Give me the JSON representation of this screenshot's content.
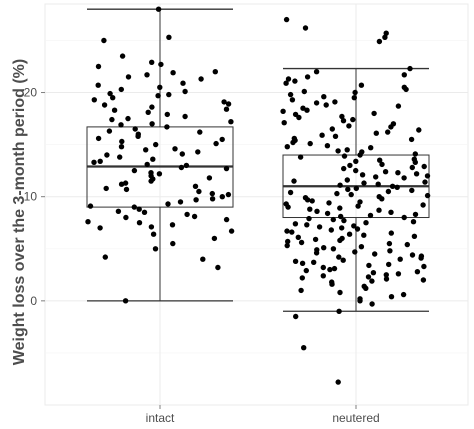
{
  "chart_data": {
    "type": "box-jitter",
    "ylabel": "Weight loss over the 3-month period (%)",
    "xlabel": "",
    "categories": [
      "intact",
      "neutered"
    ],
    "ylim": [
      -10,
      28.5
    ],
    "yticks": [
      0,
      10,
      20
    ],
    "grid": true,
    "legend": "none",
    "colors": {
      "point": "#000000",
      "box": "#333333",
      "grid_major": "#ebebeb",
      "grid_minor": "#f5f5f5",
      "axis": "#7f7f7f"
    },
    "boxes": [
      {
        "category": "intact",
        "whisker_low": 0.0,
        "q1": 9.0,
        "median": 12.9,
        "q3": 16.7,
        "whisker_high": 28.0
      },
      {
        "category": "neutered",
        "whisker_low": -1.0,
        "q1": 8.0,
        "median": 11.0,
        "q3": 14.0,
        "whisker_high": 22.3
      }
    ],
    "points": {
      "intact": [
        28.0,
        25.3,
        25.0,
        23.5,
        22.9,
        22.7,
        22.5,
        22.0,
        21.9,
        21.7,
        21.5,
        21.3,
        20.9,
        20.7,
        20.5,
        20.3,
        20.1,
        19.9,
        19.8,
        19.7,
        19.5,
        19.3,
        19.1,
        18.9,
        18.8,
        18.6,
        18.4,
        18.3,
        18.1,
        17.9,
        17.7,
        17.5,
        17.4,
        17.2,
        17.0,
        16.9,
        16.7,
        16.5,
        16.3,
        16.2,
        16.0,
        15.8,
        15.6,
        15.5,
        15.3,
        15.1,
        15.0,
        14.8,
        14.6,
        14.5,
        14.3,
        14.1,
        14.0,
        13.8,
        13.6,
        13.4,
        13.3,
        13.1,
        13.0,
        12.8,
        12.7,
        12.5,
        12.3,
        12.2,
        12.0,
        11.8,
        11.7,
        11.5,
        11.3,
        11.2,
        11.0,
        10.8,
        10.7,
        10.5,
        10.3,
        10.2,
        10.0,
        9.8,
        9.7,
        9.5,
        9.3,
        9.1,
        9.0,
        8.8,
        8.6,
        8.5,
        8.3,
        8.1,
        8.0,
        7.8,
        7.6,
        7.5,
        7.3,
        7.1,
        7.0,
        6.7,
        6.4,
        6.0,
        5.5,
        5.0,
        4.2,
        4.0,
        3.2,
        0.0
      ],
      "neutered": [
        27.0,
        26.2,
        25.7,
        25.3,
        24.9,
        22.3,
        22.0,
        21.7,
        21.5,
        21.3,
        21.1,
        20.9,
        20.7,
        20.5,
        20.3,
        20.1,
        20.0,
        19.8,
        19.6,
        19.5,
        19.3,
        19.1,
        19.0,
        18.8,
        18.7,
        18.5,
        18.3,
        18.2,
        18.0,
        17.9,
        17.7,
        17.6,
        17.4,
        17.3,
        17.1,
        17.0,
        16.8,
        16.7,
        16.5,
        16.4,
        16.2,
        16.1,
        15.9,
        15.8,
        15.6,
        15.5,
        15.4,
        15.2,
        15.1,
        14.9,
        14.8,
        14.7,
        14.5,
        14.4,
        14.3,
        14.1,
        14.0,
        13.9,
        13.8,
        13.6,
        13.5,
        13.4,
        13.3,
        13.1,
        13.0,
        12.9,
        12.8,
        12.7,
        12.5,
        12.4,
        12.3,
        12.2,
        12.1,
        12.0,
        11.9,
        11.8,
        11.6,
        11.5,
        11.4,
        11.3,
        11.2,
        11.1,
        11.0,
        10.9,
        10.8,
        10.7,
        10.6,
        10.5,
        10.4,
        10.3,
        10.2,
        10.1,
        10.0,
        9.9,
        9.8,
        9.7,
        9.6,
        9.5,
        9.4,
        9.3,
        9.2,
        9.1,
        9.0,
        8.9,
        8.8,
        8.7,
        8.6,
        8.5,
        8.4,
        8.3,
        8.2,
        8.1,
        8.0,
        7.9,
        7.8,
        7.7,
        7.6,
        7.5,
        7.4,
        7.3,
        7.2,
        7.1,
        7.0,
        6.9,
        6.8,
        6.7,
        6.6,
        6.5,
        6.4,
        6.3,
        6.2,
        6.1,
        6.0,
        5.9,
        5.8,
        5.7,
        5.6,
        5.5,
        5.4,
        5.3,
        5.2,
        5.1,
        5.0,
        4.9,
        4.8,
        4.7,
        4.6,
        4.5,
        4.4,
        4.3,
        4.2,
        4.1,
        4.0,
        3.9,
        3.8,
        3.7,
        3.6,
        3.5,
        3.4,
        3.3,
        3.2,
        3.1,
        3.0,
        2.9,
        2.8,
        2.7,
        2.6,
        2.5,
        2.4,
        2.3,
        2.2,
        2.1,
        2.0,
        1.9,
        1.8,
        1.6,
        1.4,
        1.2,
        1.0,
        0.8,
        0.6,
        0.4,
        0.2,
        0.0,
        -0.3,
        -1.0,
        -1.5,
        -4.5,
        -7.8
      ]
    }
  }
}
